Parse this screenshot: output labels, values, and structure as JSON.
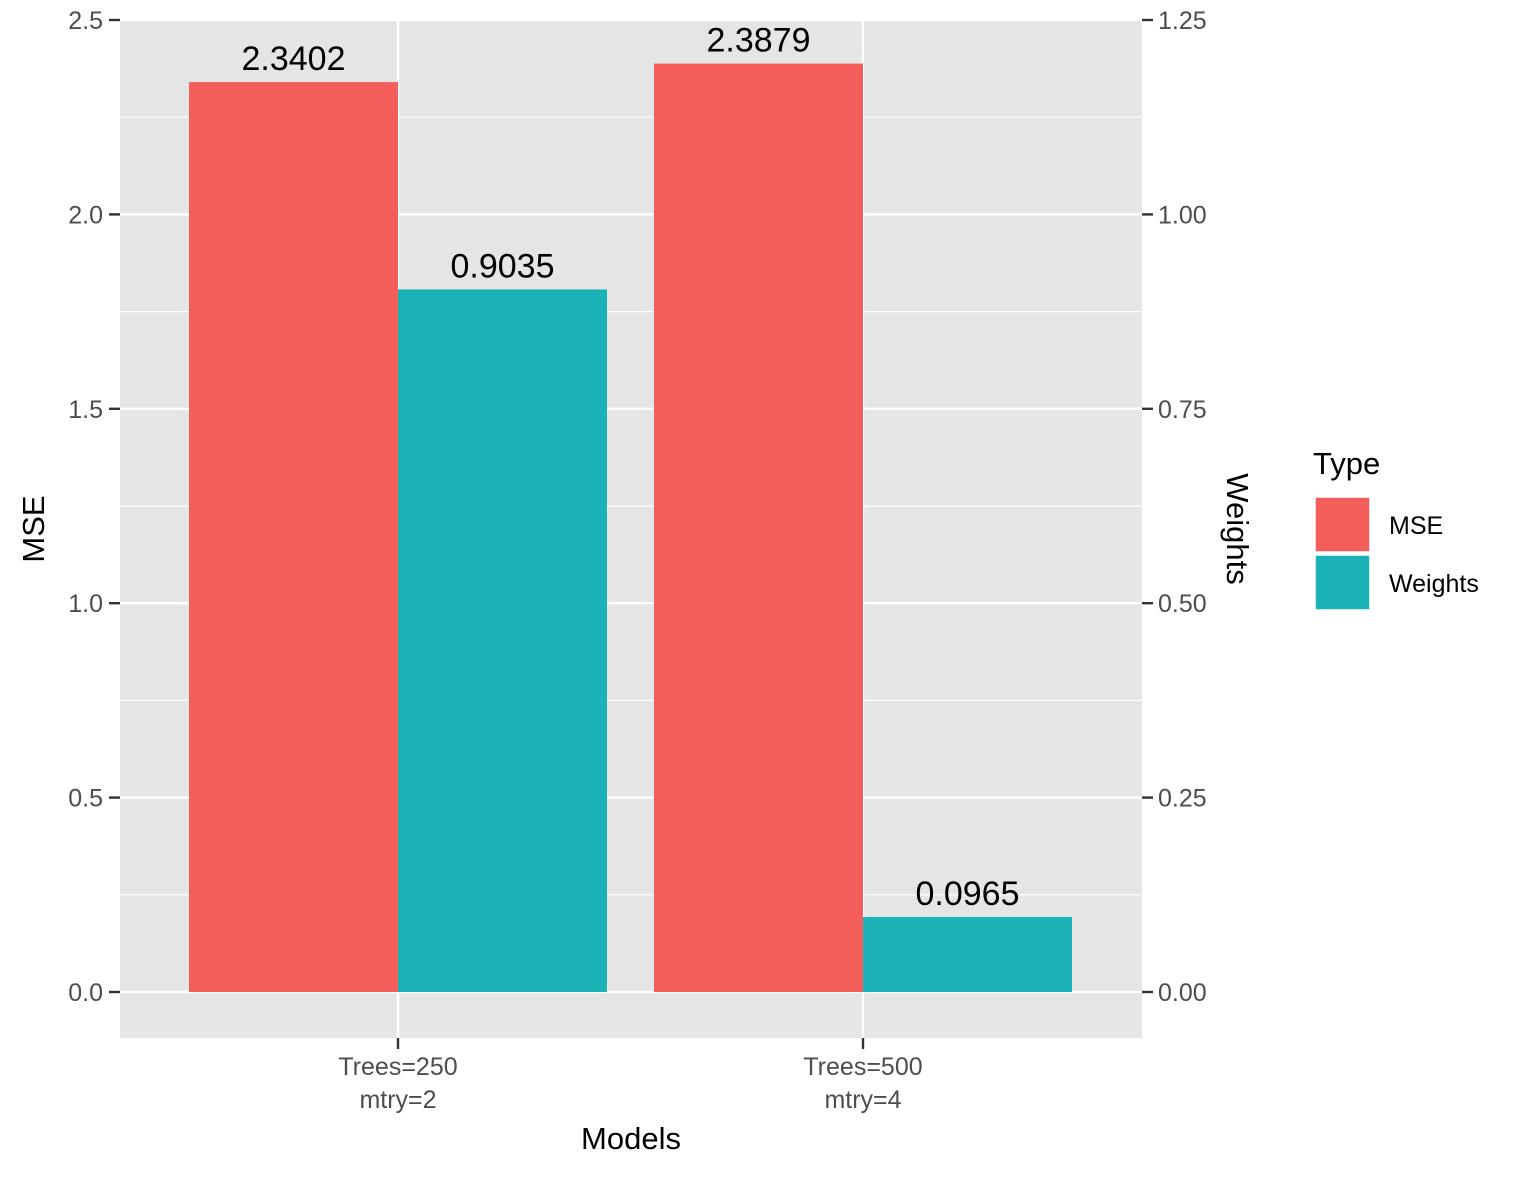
{
  "chart_data": {
    "type": "bar",
    "title": "",
    "xlabel": "Models",
    "ylabel": "MSE",
    "y2label": "Weights",
    "categories": [
      [
        "Trees=250",
        "mtry=2"
      ],
      [
        "Trees=500",
        "mtry=4"
      ]
    ],
    "ylim": [
      0,
      2.5
    ],
    "y2lim": [
      0,
      1.25
    ],
    "yticks": [
      "0.0",
      "0.5",
      "1.0",
      "1.5",
      "2.0",
      "2.5"
    ],
    "y2ticks": [
      "0.00",
      "0.25",
      "0.50",
      "0.75",
      "1.00",
      "1.25"
    ],
    "series": [
      {
        "name": "MSE",
        "axis": "left",
        "color": "#F35E5A",
        "values": [
          2.3402,
          2.3879
        ],
        "labels": [
          "2.3402",
          "2.3879"
        ]
      },
      {
        "name": "Weights",
        "axis": "right",
        "color": "#19B3B7",
        "values": [
          0.9035,
          0.0965
        ],
        "labels": [
          "0.9035",
          "0.0965"
        ]
      }
    ],
    "legend": {
      "title": "Type",
      "position": "right"
    },
    "grid": true,
    "panel_background": "#E5E5E5",
    "grid_color": "#FFFFFF"
  }
}
